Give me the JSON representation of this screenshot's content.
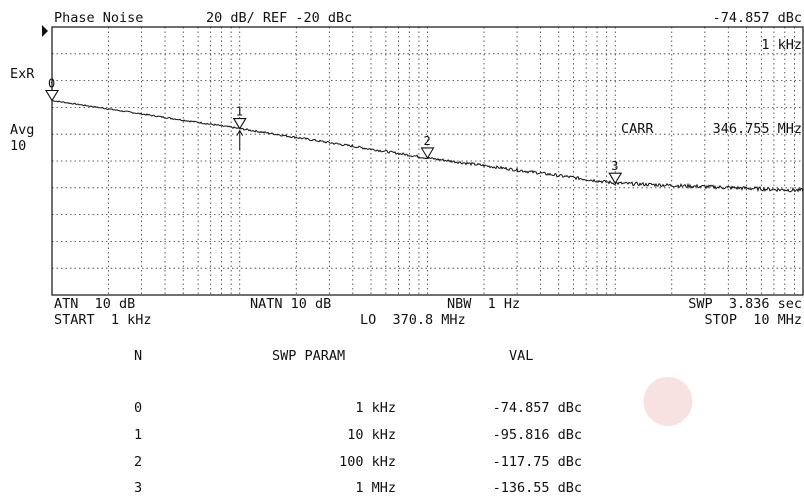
{
  "header": {
    "title": "Phase Noise",
    "scale": "20 dB/ REF -20 dBc",
    "marker_value": "-74.857 dBc",
    "marker_freq": "1 kHz"
  },
  "left_panel": {
    "exr": "ExR",
    "avg": "Avg",
    "avg_count": "10"
  },
  "carrier": {
    "label": "CARR",
    "value": "346.755 MHz"
  },
  "footer": {
    "atn": "ATN  10 dB",
    "natn": "NATN 10 dB",
    "nbw": "NBW  1 Hz",
    "swp": "SWP  3.836 sec",
    "start": "START  1 kHz",
    "lo": "LO  370.8 MHz",
    "stop": "STOP  10 MHz"
  },
  "table": {
    "headers": [
      "N",
      "SWP PARAM",
      "VAL"
    ],
    "rows": [
      {
        "n": "0",
        "param": "1 kHz",
        "val": "-74.857 dBc"
      },
      {
        "n": "1",
        "param": "10 kHz",
        "val": "-95.816 dBc"
      },
      {
        "n": "2",
        "param": "100 kHz",
        "val": "-117.75 dBc"
      },
      {
        "n": "3",
        "param": "1 MHz",
        "val": "-136.55 dBc"
      }
    ]
  },
  "chart_data": {
    "type": "line",
    "title": "Phase Noise",
    "x_scale": "log",
    "xlim_hz": [
      1000,
      10000000
    ],
    "y_ref_dbc": -20,
    "y_div_db": 20,
    "y_divisions": 10,
    "grid": true,
    "trace_color": "#111111",
    "markers": [
      {
        "label": "0",
        "x_hz": 1000,
        "y_dbc": -74.857
      },
      {
        "label": "1",
        "x_hz": 10000,
        "y_dbc": -95.816
      },
      {
        "label": "2",
        "x_hz": 100000,
        "y_dbc": -117.75
      },
      {
        "label": "3",
        "x_hz": 1000000,
        "y_dbc": -136.55
      }
    ],
    "trace_end_dbc": -142
  }
}
